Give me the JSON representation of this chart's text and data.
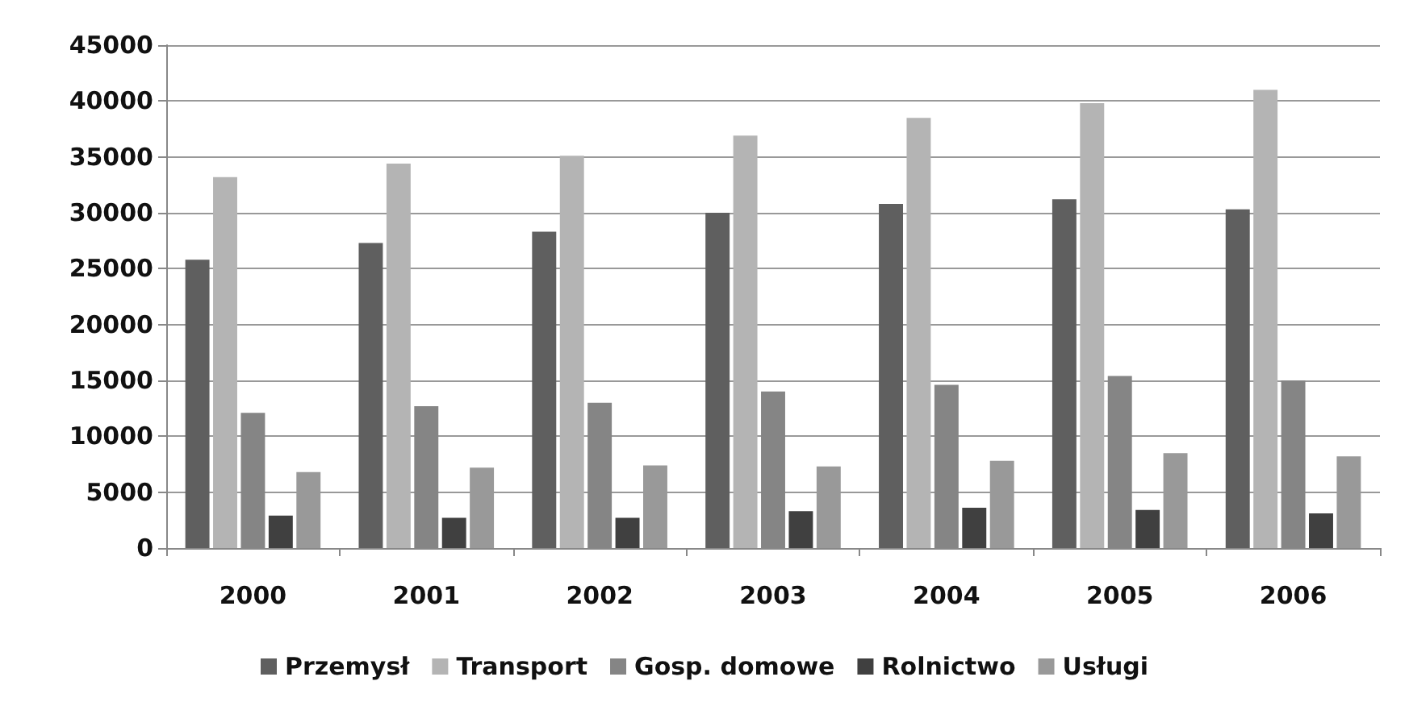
{
  "chart_data": {
    "type": "bar",
    "categories": [
      "2000",
      "2001",
      "2002",
      "2003",
      "2004",
      "2005",
      "2006"
    ],
    "series": [
      {
        "name": "Przemysł",
        "color": "#5f5f5f",
        "values": [
          25800,
          27300,
          28300,
          30000,
          30800,
          31200,
          30300
        ]
      },
      {
        "name": "Transport",
        "color": "#b4b4b4",
        "values": [
          33200,
          34400,
          35100,
          36900,
          38500,
          39800,
          41000
        ]
      },
      {
        "name": "Gosp. domowe",
        "color": "#858585",
        "values": [
          12100,
          12700,
          13000,
          14000,
          14600,
          15400,
          15000
        ]
      },
      {
        "name": "Rolnictwo",
        "color": "#404040",
        "values": [
          2900,
          2700,
          2700,
          3300,
          3600,
          3400,
          3100
        ]
      },
      {
        "name": "Usługi",
        "color": "#999999",
        "values": [
          6800,
          7200,
          7400,
          7300,
          7800,
          8500,
          8200
        ]
      }
    ],
    "ylim": [
      0,
      45000
    ],
    "yticks": [
      0,
      5000,
      10000,
      15000,
      20000,
      25000,
      30000,
      35000,
      40000,
      45000
    ],
    "grid": "y",
    "legend": "bottom"
  }
}
